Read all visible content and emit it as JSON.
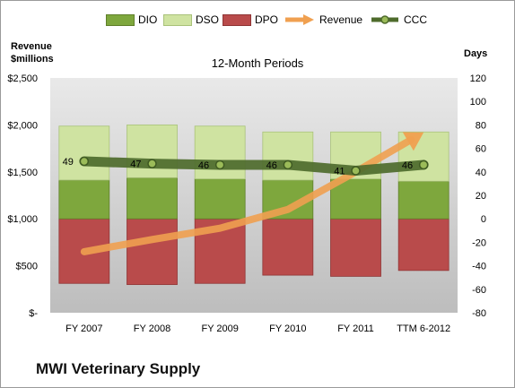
{
  "chart_data": {
    "type": "bar",
    "subtitle": "12-Month Periods",
    "footer_title": "MWI Veterinary Supply",
    "ylabel_left": "Revenue\n$millions",
    "ylabel_right": "Days",
    "categories": [
      "FY 2007",
      "FY 2008",
      "FY 2009",
      "FY 2010",
      "FY 2011",
      "TTM 6-2012"
    ],
    "y_left": {
      "min": 0,
      "max": 2500,
      "step": 500,
      "tick_labels": [
        "$-",
        "$500",
        "$1,000",
        "$1,500",
        "$2,000",
        "$2,500"
      ]
    },
    "y_right": {
      "min": -80,
      "max": 120,
      "step": 20,
      "tick_labels": [
        "-80",
        "-60",
        "-40",
        "-20",
        "0",
        "20",
        "40",
        "60",
        "80",
        "100",
        "120"
      ]
    },
    "legend": {
      "position": "top",
      "entries": [
        "DIO",
        "DSO",
        "DPO",
        "Revenue",
        "CCC"
      ]
    },
    "series": [
      {
        "name": "DIO",
        "axis": "right",
        "kind": "stacked-bar",
        "color": "#7ea73d",
        "values": [
          33,
          35,
          34,
          33,
          34,
          32
        ]
      },
      {
        "name": "DSO",
        "axis": "right",
        "kind": "stacked-bar",
        "color": "#cfe3a1",
        "values": [
          46,
          45,
          45,
          41,
          40,
          42
        ]
      },
      {
        "name": "DPO",
        "axis": "right",
        "kind": "negative-bar",
        "color": "#b94b4b",
        "values": [
          -55,
          -56,
          -55,
          -48,
          -49,
          -44
        ]
      },
      {
        "name": "Revenue",
        "axis": "left",
        "kind": "arrow-line",
        "color": "#f0a050",
        "values": [
          650,
          780,
          900,
          1100,
          1500,
          1920
        ]
      },
      {
        "name": "CCC",
        "axis": "right",
        "kind": "line",
        "color": "#4e6b2c",
        "values": [
          49,
          47,
          46,
          46,
          41,
          46
        ],
        "data_labels": [
          "49",
          "47",
          "46",
          "46",
          "41",
          "46"
        ]
      }
    ],
    "grid": false
  }
}
